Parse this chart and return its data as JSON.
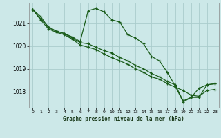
{
  "title": "Graphe pression niveau de la mer (hPa)",
  "bg_color": "#cce8e8",
  "grid_color": "#aacccc",
  "line_color": "#1a5c1a",
  "xlim": [
    -0.5,
    23.5
  ],
  "ylim": [
    1017.3,
    1021.9
  ],
  "yticks": [
    1018,
    1019,
    1020,
    1021
  ],
  "xticks": [
    0,
    1,
    2,
    3,
    4,
    5,
    6,
    7,
    8,
    9,
    10,
    11,
    12,
    13,
    14,
    15,
    16,
    17,
    18,
    19,
    20,
    21,
    22,
    23
  ],
  "line1_x": [
    0,
    1,
    2,
    3,
    4,
    5,
    6,
    7,
    8,
    9,
    10,
    11,
    12,
    13,
    14,
    15,
    16,
    17,
    18,
    19,
    20,
    21,
    22,
    23
  ],
  "line1_y": [
    1021.6,
    1021.3,
    1020.8,
    1020.65,
    1020.55,
    1020.4,
    1020.2,
    1021.55,
    1021.65,
    1021.5,
    1021.15,
    1021.05,
    1020.5,
    1020.35,
    1020.1,
    1019.55,
    1019.35,
    1018.85,
    1018.25,
    1017.55,
    1017.75,
    1017.75,
    1018.3,
    1018.35
  ],
  "line2_x": [
    0,
    1,
    2,
    3,
    4,
    5,
    6,
    7,
    8,
    9,
    10,
    11,
    12,
    13,
    14,
    15,
    16,
    17,
    18,
    19,
    20,
    21,
    22,
    23
  ],
  "line2_y": [
    1021.6,
    1021.15,
    1020.75,
    1020.6,
    1020.5,
    1020.3,
    1020.05,
    1019.95,
    1019.85,
    1019.65,
    1019.5,
    1019.35,
    1019.2,
    1019.0,
    1018.85,
    1018.65,
    1018.55,
    1018.35,
    1018.2,
    1018.05,
    1017.85,
    1017.8,
    1018.05,
    1018.1
  ],
  "line3_x": [
    0,
    1,
    2,
    3,
    4,
    5,
    6,
    7,
    8,
    9,
    10,
    11,
    12,
    13,
    14,
    15,
    16,
    17,
    18,
    19,
    20,
    21,
    22,
    23
  ],
  "line3_y": [
    1021.6,
    1021.2,
    1020.85,
    1020.65,
    1020.55,
    1020.35,
    1020.15,
    1020.1,
    1019.95,
    1019.8,
    1019.7,
    1019.5,
    1019.35,
    1019.15,
    1019.0,
    1018.8,
    1018.65,
    1018.45,
    1018.3,
    1017.6,
    1017.75,
    1018.15,
    1018.3,
    1018.35
  ]
}
